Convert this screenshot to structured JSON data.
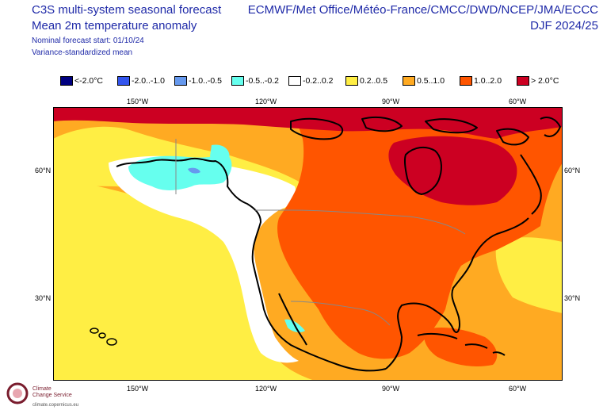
{
  "header": {
    "title_line1": "C3S multi-system seasonal forecast",
    "title_line2": "Mean 2m temperature anomaly",
    "start_line": "Nominal forecast start: 01/10/24",
    "method_line": "Variance-standardized mean",
    "systems": "ECMWF/Met Office/Météo-France/CMCC/DWD/NCEP/JMA/ECCC",
    "season": "DJF 2024/25"
  },
  "legend": [
    {
      "label": "<-2.0°C",
      "color": "#000080"
    },
    {
      "label": "-2.0..-1.0",
      "color": "#3355ee"
    },
    {
      "label": "-1.0..-0.5",
      "color": "#6699ee"
    },
    {
      "label": "-0.5..-0.2",
      "color": "#66ffee"
    },
    {
      "label": "-0.2..0.2",
      "color": "#ffffff"
    },
    {
      "label": "0.2..0.5",
      "color": "#ffee44"
    },
    {
      "label": "0.5..1.0",
      "color": "#ffaa22"
    },
    {
      "label": "1.0..2.0",
      "color": "#ff5500"
    },
    {
      "label": "> 2.0°C",
      "color": "#cc0022"
    }
  ],
  "axis": {
    "lon_top": [
      "150°W",
      "120°W",
      "90°W",
      "60°W"
    ],
    "lon_bottom": [
      "150°W",
      "120°W",
      "90°W",
      "60°W"
    ],
    "lat_left": [
      "60°N",
      "30°N"
    ],
    "lat_right": [
      "60°N",
      "30°N"
    ]
  },
  "logo": {
    "name_line1": "Climate",
    "name_line2": "Change Service",
    "url": "climate.copernicus.eu"
  }
}
